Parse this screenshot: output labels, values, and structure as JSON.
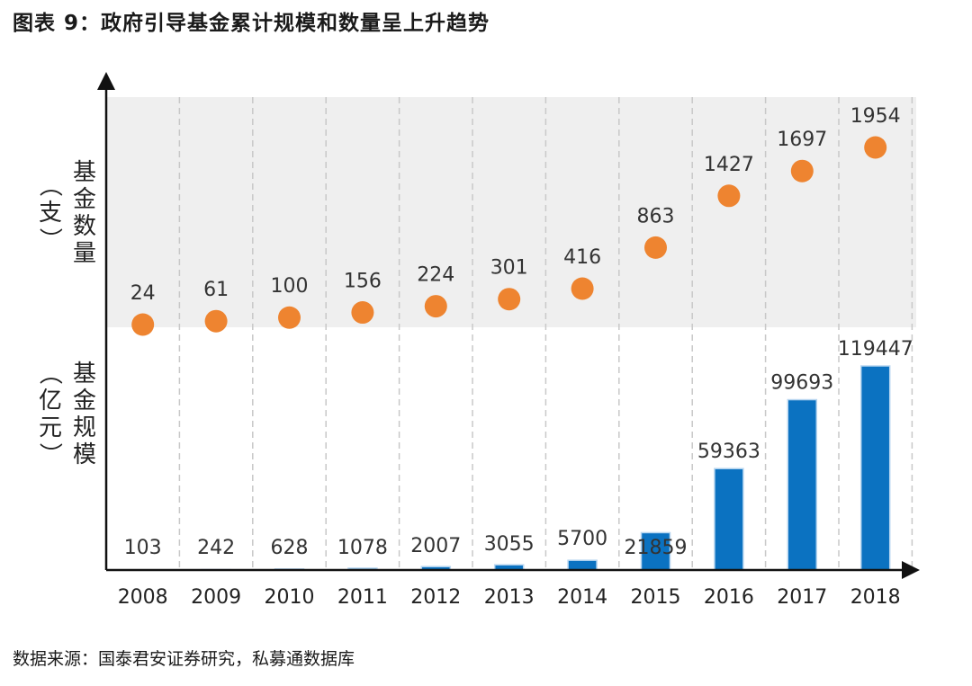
{
  "title": "图表 9：政府引导基金累计规模和数量呈上升趋势",
  "source": "数据来源：国泰君安证券研究，私募通数据库",
  "colors": {
    "count_dots": "#EE8430",
    "size_bars": "#0B72C1",
    "band": "#EFEFEF"
  },
  "chart_data": {
    "type": "bar",
    "categories": [
      "2008",
      "2009",
      "2010",
      "2011",
      "2012",
      "2013",
      "2014",
      "2015",
      "2016",
      "2017",
      "2018"
    ],
    "y_labels": {
      "count": "基金数量（支）",
      "size": "基金规模（亿元）"
    },
    "series": [
      {
        "name": "基金数量（支）",
        "type": "scatter",
        "values": [
          24,
          61,
          100,
          156,
          224,
          301,
          416,
          863,
          1427,
          1697,
          1954
        ]
      },
      {
        "name": "基金规模（亿元）",
        "type": "bar",
        "values": [
          103,
          242,
          628,
          1078,
          2007,
          3055,
          5700,
          21859,
          59363,
          99693,
          119447
        ]
      }
    ],
    "grid": "vertical-dashed",
    "legend": "none"
  }
}
